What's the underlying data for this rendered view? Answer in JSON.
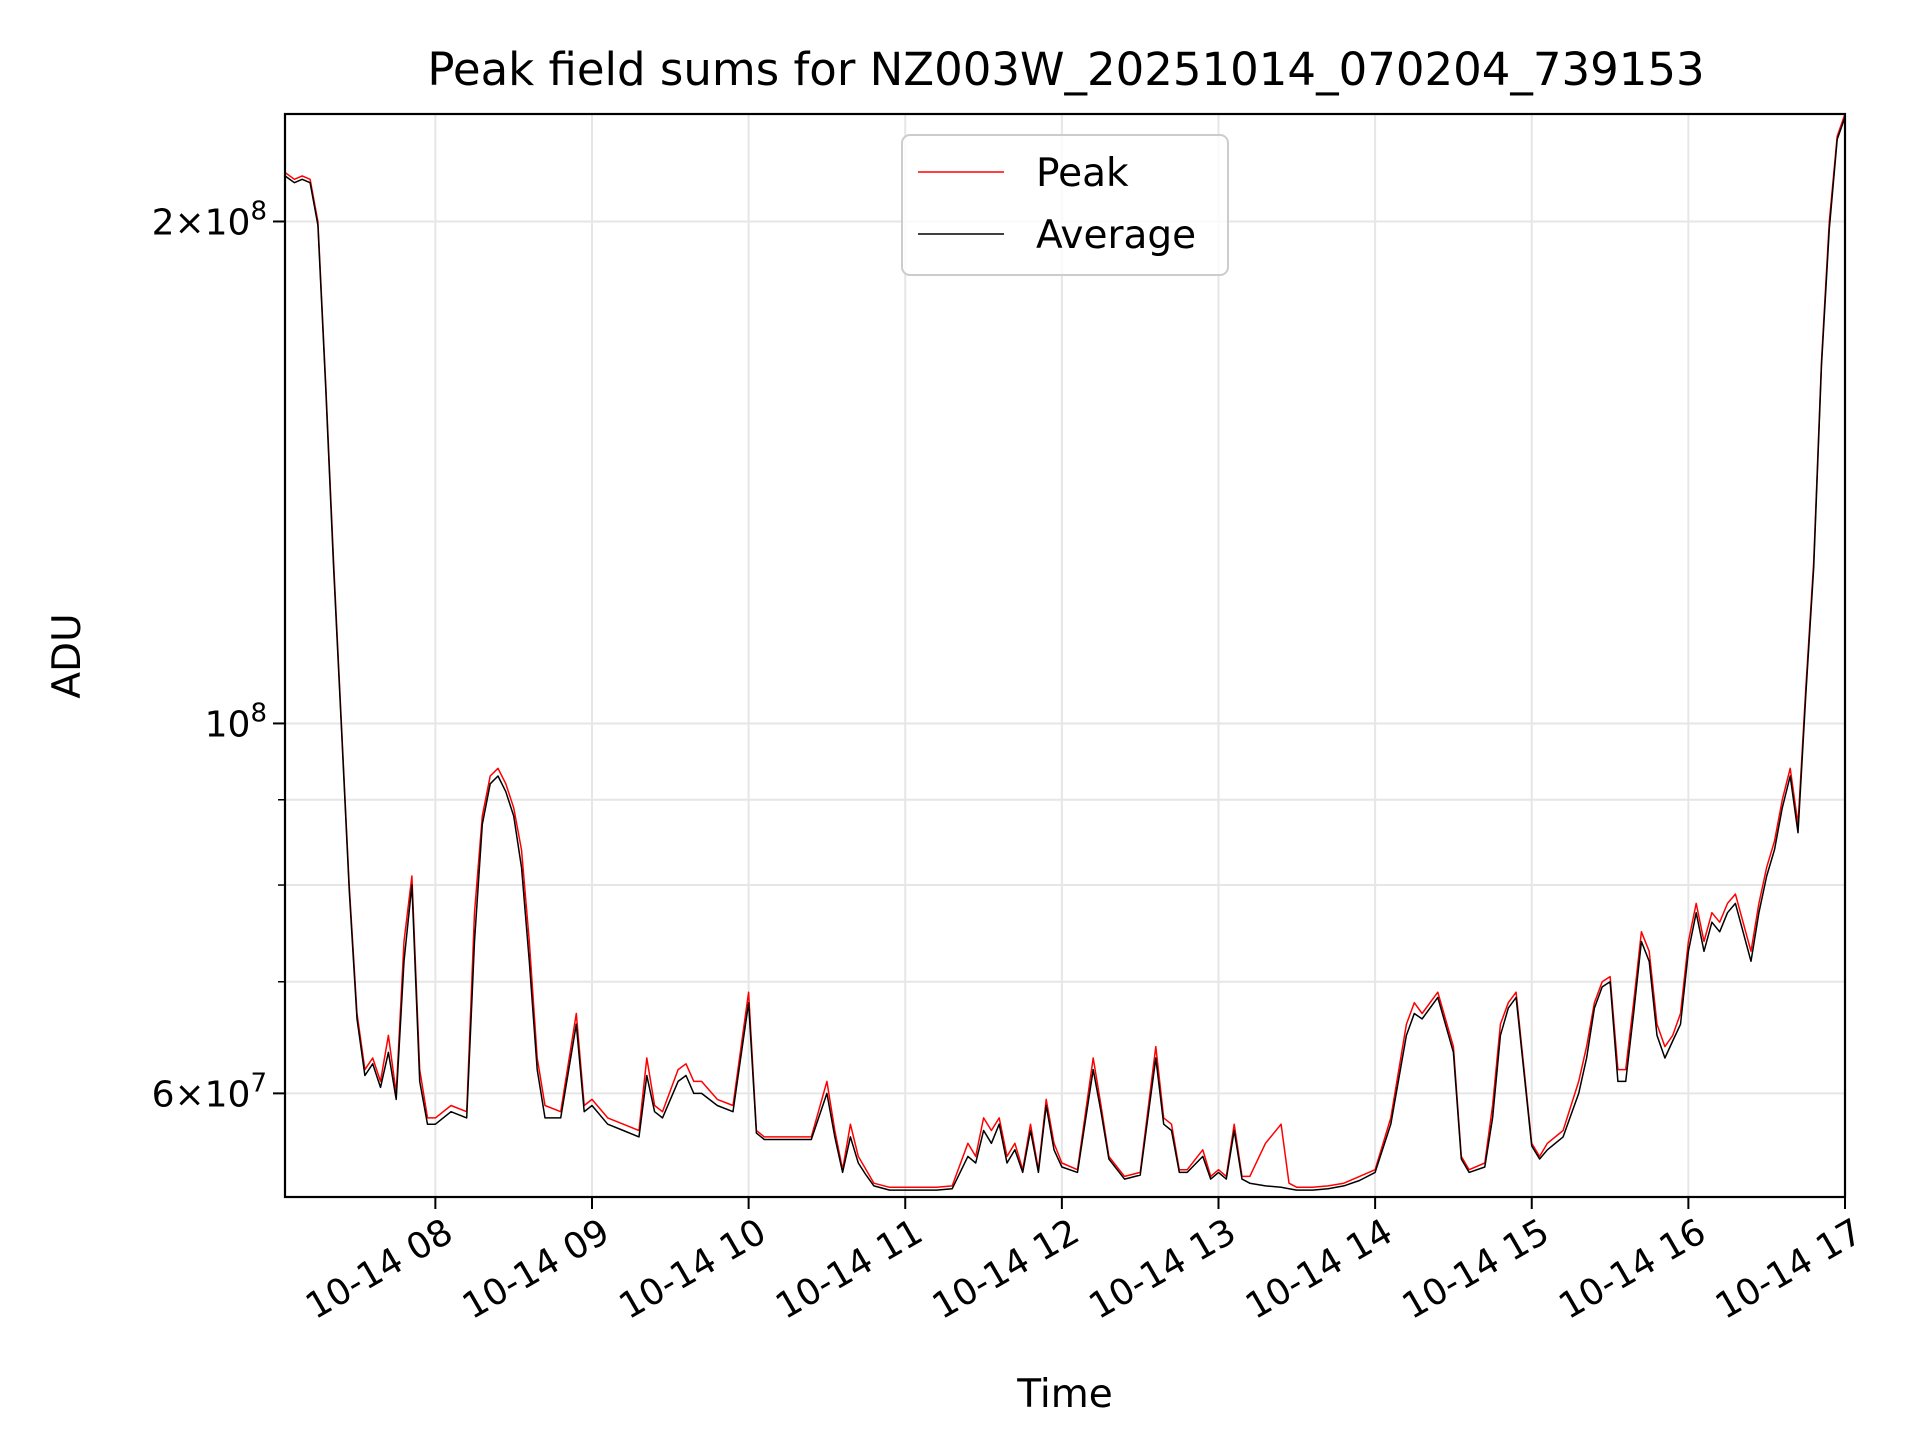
{
  "chart_data": {
    "type": "line",
    "title": "Peak field sums for NZ003W_20251014_070204_739153",
    "xlabel": "Time",
    "ylabel": "ADU",
    "yscale": "log",
    "xlim": [
      7.04,
      17.0
    ],
    "ylim": [
      52000000,
      232000000
    ],
    "grid": true,
    "legend_position": "upper-center",
    "x_ticks": [
      {
        "value": 8,
        "label": "10-14 08"
      },
      {
        "value": 9,
        "label": "10-14 09"
      },
      {
        "value": 10,
        "label": "10-14 10"
      },
      {
        "value": 11,
        "label": "10-14 11"
      },
      {
        "value": 12,
        "label": "10-14 12"
      },
      {
        "value": 13,
        "label": "10-14 13"
      },
      {
        "value": 14,
        "label": "10-14 14"
      },
      {
        "value": 15,
        "label": "10-14 15"
      },
      {
        "value": 16,
        "label": "10-14 16"
      },
      {
        "value": 17,
        "label": "10-14 17"
      }
    ],
    "y_major_ticks": [
      {
        "value": 60000000,
        "mantissa": "6",
        "exponent": "7"
      },
      {
        "value": 100000000,
        "mantissa": "",
        "exponent": "8"
      },
      {
        "value": 200000000,
        "mantissa": "2",
        "exponent": "8"
      }
    ],
    "y_minor_gridlines": [
      70000000,
      80000000,
      90000000
    ],
    "y_base": "10",
    "y_times": "×",
    "series": [
      {
        "name": "Peak",
        "color": "#ff0000",
        "x": [
          7.04,
          7.1,
          7.15,
          7.2,
          7.25,
          7.3,
          7.35,
          7.4,
          7.45,
          7.5,
          7.55,
          7.6,
          7.65,
          7.7,
          7.75,
          7.8,
          7.85,
          7.9,
          7.95,
          8.0,
          8.1,
          8.2,
          8.25,
          8.3,
          8.35,
          8.4,
          8.45,
          8.5,
          8.55,
          8.6,
          8.65,
          8.7,
          8.8,
          8.9,
          8.95,
          9.0,
          9.1,
          9.2,
          9.3,
          9.35,
          9.4,
          9.45,
          9.55,
          9.6,
          9.65,
          9.7,
          9.8,
          9.9,
          10.0,
          10.05,
          10.1,
          10.2,
          10.3,
          10.4,
          10.5,
          10.55,
          10.6,
          10.65,
          10.7,
          10.75,
          10.8,
          10.9,
          11.0,
          11.1,
          11.2,
          11.3,
          11.4,
          11.45,
          11.5,
          11.55,
          11.6,
          11.65,
          11.7,
          11.75,
          11.8,
          11.85,
          11.9,
          11.95,
          12.0,
          12.1,
          12.2,
          12.25,
          12.3,
          12.4,
          12.5,
          12.6,
          12.65,
          12.7,
          12.75,
          12.8,
          12.9,
          12.95,
          13.0,
          13.05,
          13.1,
          13.15,
          13.2,
          13.3,
          13.4,
          13.45,
          13.5,
          13.6,
          13.7,
          13.8,
          13.9,
          14.0,
          14.1,
          14.2,
          14.25,
          14.3,
          14.4,
          14.5,
          14.55,
          14.6,
          14.7,
          14.75,
          14.8,
          14.85,
          14.9,
          15.0,
          15.05,
          15.1,
          15.2,
          15.3,
          15.35,
          15.4,
          15.45,
          15.5,
          15.55,
          15.6,
          15.65,
          15.7,
          15.75,
          15.8,
          15.85,
          15.9,
          15.95,
          16.0,
          16.05,
          16.1,
          16.15,
          16.2,
          16.25,
          16.3,
          16.4,
          16.45,
          16.5,
          16.55,
          16.6,
          16.65,
          16.7,
          16.75,
          16.8,
          16.85,
          16.9,
          16.95,
          17.0
        ],
        "values": [
          214000000,
          212000000,
          213000000,
          212000000,
          200000000,
          160000000,
          125000000,
          100000000,
          80000000,
          67000000,
          62000000,
          63000000,
          61000000,
          65000000,
          60000000,
          74000000,
          81000000,
          62000000,
          58000000,
          58000000,
          59000000,
          58500000,
          77000000,
          88000000,
          93000000,
          94000000,
          92000000,
          89000000,
          84000000,
          74000000,
          63000000,
          59000000,
          58500000,
          67000000,
          59000000,
          59500000,
          58000000,
          57500000,
          57000000,
          63000000,
          59000000,
          58500000,
          62000000,
          62500000,
          61000000,
          61000000,
          59500000,
          59000000,
          69000000,
          57000000,
          56500000,
          56500000,
          56500000,
          56500000,
          61000000,
          57000000,
          54000000,
          57500000,
          55000000,
          54000000,
          53000000,
          52700000,
          52700000,
          52700000,
          52700000,
          52800000,
          56000000,
          55000000,
          58000000,
          57000000,
          58000000,
          55000000,
          56000000,
          54000000,
          57500000,
          54000000,
          59500000,
          56000000,
          54500000,
          54000000,
          63000000,
          59000000,
          55000000,
          53500000,
          53800000,
          64000000,
          58000000,
          57500000,
          54000000,
          54000000,
          55500000,
          53500000,
          54000000,
          53500000,
          57500000,
          53500000,
          53500000,
          56000000,
          57500000,
          53000000,
          52700000,
          52700000,
          52800000,
          53000000,
          53500000,
          54000000,
          58000000,
          66000000,
          68000000,
          67000000,
          69000000,
          64000000,
          55000000,
          54000000,
          54500000,
          59000000,
          66000000,
          68000000,
          69000000,
          56000000,
          55000000,
          56000000,
          57000000,
          61000000,
          64000000,
          68000000,
          70000000,
          70500000,
          62000000,
          62000000,
          68000000,
          75000000,
          73000000,
          66000000,
          64000000,
          65000000,
          67000000,
          74000000,
          78000000,
          74000000,
          77000000,
          76000000,
          78000000,
          79000000,
          73000000,
          78000000,
          82000000,
          85000000,
          90000000,
          94000000,
          87000000,
          105000000,
          125000000,
          165000000,
          200000000,
          225000000,
          232000000
        ]
      },
      {
        "name": "Average",
        "color": "#000000",
        "x": [
          7.04,
          7.1,
          7.15,
          7.2,
          7.25,
          7.3,
          7.35,
          7.4,
          7.45,
          7.5,
          7.55,
          7.6,
          7.65,
          7.7,
          7.75,
          7.8,
          7.85,
          7.9,
          7.95,
          8.0,
          8.1,
          8.2,
          8.25,
          8.3,
          8.35,
          8.4,
          8.45,
          8.5,
          8.55,
          8.6,
          8.65,
          8.7,
          8.8,
          8.9,
          8.95,
          9.0,
          9.1,
          9.2,
          9.3,
          9.35,
          9.4,
          9.45,
          9.55,
          9.6,
          9.65,
          9.7,
          9.8,
          9.9,
          10.0,
          10.05,
          10.1,
          10.2,
          10.3,
          10.4,
          10.5,
          10.55,
          10.6,
          10.65,
          10.7,
          10.75,
          10.8,
          10.9,
          11.0,
          11.1,
          11.2,
          11.3,
          11.4,
          11.45,
          11.5,
          11.55,
          11.6,
          11.65,
          11.7,
          11.75,
          11.8,
          11.85,
          11.9,
          11.95,
          12.0,
          12.1,
          12.2,
          12.25,
          12.3,
          12.4,
          12.5,
          12.6,
          12.65,
          12.7,
          12.75,
          12.8,
          12.9,
          12.95,
          13.0,
          13.05,
          13.1,
          13.15,
          13.2,
          13.3,
          13.4,
          13.45,
          13.5,
          13.6,
          13.7,
          13.8,
          13.9,
          14.0,
          14.1,
          14.2,
          14.25,
          14.3,
          14.4,
          14.5,
          14.55,
          14.6,
          14.7,
          14.75,
          14.8,
          14.85,
          14.9,
          15.0,
          15.05,
          15.1,
          15.2,
          15.3,
          15.35,
          15.4,
          15.45,
          15.5,
          15.55,
          15.6,
          15.65,
          15.7,
          15.75,
          15.8,
          15.85,
          15.9,
          15.95,
          16.0,
          16.05,
          16.1,
          16.15,
          16.2,
          16.25,
          16.3,
          16.4,
          16.45,
          16.5,
          16.55,
          16.6,
          16.65,
          16.7,
          16.75,
          16.8,
          16.85,
          16.9,
          16.95,
          17.0
        ],
        "values": [
          213000000,
          211000000,
          212000000,
          211000000,
          199000000,
          159000000,
          124000000,
          99500000,
          79500000,
          66500000,
          61500000,
          62500000,
          60500000,
          63500000,
          59500000,
          72000000,
          80000000,
          61000000,
          57500000,
          57500000,
          58500000,
          58000000,
          74000000,
          87000000,
          92000000,
          93000000,
          91000000,
          88000000,
          82000000,
          72000000,
          62000000,
          58000000,
          58000000,
          66000000,
          58500000,
          59000000,
          57500000,
          57000000,
          56500000,
          61500000,
          58500000,
          58000000,
          61000000,
          61500000,
          60000000,
          60000000,
          59000000,
          58500000,
          68000000,
          56800000,
          56300000,
          56300000,
          56300000,
          56300000,
          60000000,
          56500000,
          53800000,
          56500000,
          54500000,
          53600000,
          52800000,
          52500000,
          52500000,
          52500000,
          52500000,
          52600000,
          55000000,
          54500000,
          57000000,
          56000000,
          57500000,
          54500000,
          55500000,
          53800000,
          57000000,
          53800000,
          59000000,
          55500000,
          54200000,
          53800000,
          62000000,
          58500000,
          54800000,
          53300000,
          53600000,
          63000000,
          57500000,
          57000000,
          53800000,
          53800000,
          55000000,
          53300000,
          53800000,
          53300000,
          57000000,
          53300000,
          53000000,
          52800000,
          52700000,
          52600000,
          52500000,
          52500000,
          52600000,
          52800000,
          53200000,
          53800000,
          57500000,
          65000000,
          67000000,
          66500000,
          68500000,
          63500000,
          54800000,
          53800000,
          54200000,
          58000000,
          65000000,
          67500000,
          68500000,
          55800000,
          54800000,
          55500000,
          56500000,
          60000000,
          63000000,
          67500000,
          69500000,
          70000000,
          61000000,
          61000000,
          67000000,
          74000000,
          72000000,
          65000000,
          63000000,
          64500000,
          66000000,
          73000000,
          77000000,
          73000000,
          76000000,
          75000000,
          77000000,
          78000000,
          72000000,
          77000000,
          81000000,
          84000000,
          89000000,
          93000000,
          86000000,
          104000000,
          124000000,
          164000000,
          198000000,
          224000000,
          231000000
        ]
      }
    ]
  }
}
